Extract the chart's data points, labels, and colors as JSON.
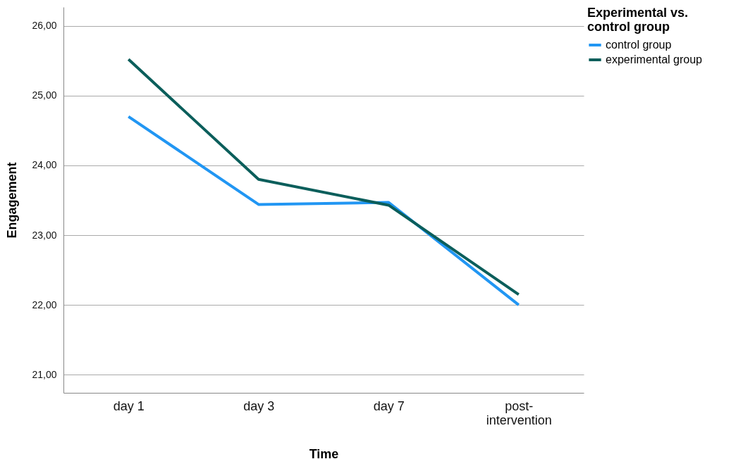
{
  "chart_data": {
    "type": "line",
    "xlabel": "Time",
    "ylabel": "Engagement",
    "legend_title": "Experimental vs. control group",
    "categories": [
      "day 1",
      "day 3",
      "day 7",
      "post-intervention"
    ],
    "series": [
      {
        "name": "control group",
        "color": "#2196f3",
        "values": [
          24.7,
          23.44,
          23.47,
          22.0
        ]
      },
      {
        "name": "experimental group",
        "color": "#0b5e5b",
        "values": [
          25.52,
          23.8,
          23.43,
          22.15
        ]
      }
    ],
    "ylim": [
      20.74,
      26.27
    ],
    "yticks": [
      {
        "value": 21,
        "label": "21,00"
      },
      {
        "value": 22,
        "label": "22,00"
      },
      {
        "value": 23,
        "label": "23,00"
      },
      {
        "value": 24,
        "label": "24,00"
      },
      {
        "value": 25,
        "label": "25,00"
      },
      {
        "value": 26,
        "label": "26,00"
      }
    ],
    "grid": "y",
    "legend": "top right",
    "marker": "none",
    "line_style": "solid"
  }
}
